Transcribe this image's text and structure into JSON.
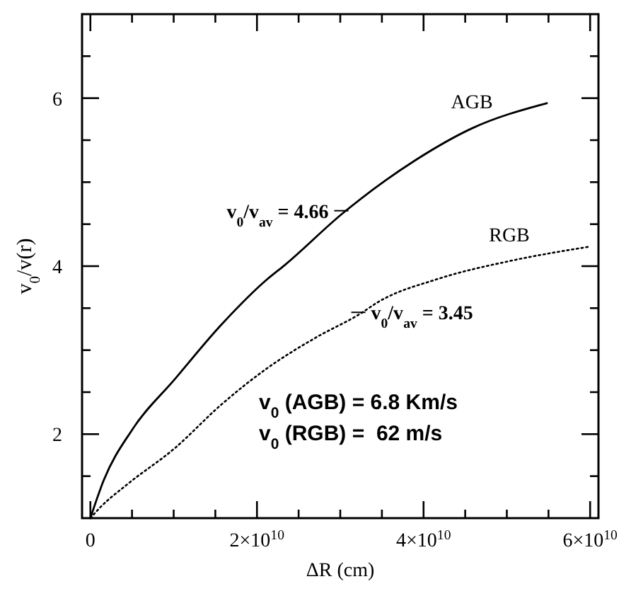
{
  "chart_data": {
    "type": "line",
    "xlabel": "ΔR (cm)",
    "ylabel": "v$_{0}$/v(r)",
    "xlim": [
      -1000000000.0,
      61000000000.0
    ],
    "ylim": [
      1,
      7
    ],
    "xticks": [
      0,
      {
        "value": 5000000000.0,
        "label": null
      },
      {
        "value": 10000000000.0,
        "label": null
      },
      {
        "value": 15000000000.0,
        "label": null
      },
      {
        "value": 20000000000.0,
        "label": "2×10$^{10}$"
      },
      {
        "value": 25000000000.0,
        "label": null
      },
      {
        "value": 30000000000.0,
        "label": null
      },
      {
        "value": 35000000000.0,
        "label": null
      },
      {
        "value": 40000000000.0,
        "label": "4×10$^{10}$"
      },
      {
        "value": 45000000000.0,
        "label": null
      },
      {
        "value": 50000000000.0,
        "label": null
      },
      {
        "value": 55000000000.0,
        "label": null
      },
      {
        "value": 60000000000.0,
        "label": "6×10$^{10}$"
      }
    ],
    "yticks": [
      {
        "value": 1.5,
        "label": null
      },
      2,
      {
        "value": 2.5,
        "label": null
      },
      {
        "value": 3,
        "label": null
      },
      {
        "value": 3.5,
        "label": null
      },
      4,
      {
        "value": 4.5,
        "label": null
      },
      {
        "value": 5,
        "label": null
      },
      {
        "value": 5.5,
        "label": null
      },
      6,
      {
        "value": 6.5,
        "label": null
      }
    ],
    "grid": false,
    "marker": "none",
    "series": [
      {
        "name": "AGB",
        "color": "#000000",
        "line_style": "solid",
        "x": [
          0,
          1600000000.0,
          5000000000.0,
          10100000000.0,
          15700000000.0,
          21300000000.0,
          23300000000.0,
          30300000000.0,
          39000000000.0,
          45800000000.0,
          54800000000.0
        ],
        "values": [
          1,
          1.45,
          2.05,
          2.65,
          3.3,
          3.85,
          4.01,
          4.63,
          5.26,
          5.64,
          5.94
        ]
      },
      {
        "name": "RGB",
        "color": "#000000",
        "line_style": "dotted",
        "x": [
          0,
          1100000000.0,
          4400000000.0,
          10100000000.0,
          15700000000.0,
          21300000000.0,
          26900000000.0,
          32500000000.0,
          34500000000.0,
          41800000000.0,
          50300000000.0,
          59800000000.0
        ],
        "values": [
          1,
          1.12,
          1.4,
          1.83,
          2.35,
          2.79,
          3.14,
          3.44,
          3.57,
          3.85,
          4.06,
          4.23
        ]
      }
    ],
    "annotations": [
      {
        "text": "v$_{0}$/v$_{av}$ = 4.66",
        "x": 30300000000.0,
        "y": 4.66
      },
      {
        "text": "v$_{0}$/v$_{av}$ = 3.45",
        "x": 32000000000.0,
        "y": 3.45
      },
      "v$_{0}$ (AGB) = 6.8 Km/s",
      "v$_{0}$ (RGB) =  62 m/s"
    ]
  }
}
